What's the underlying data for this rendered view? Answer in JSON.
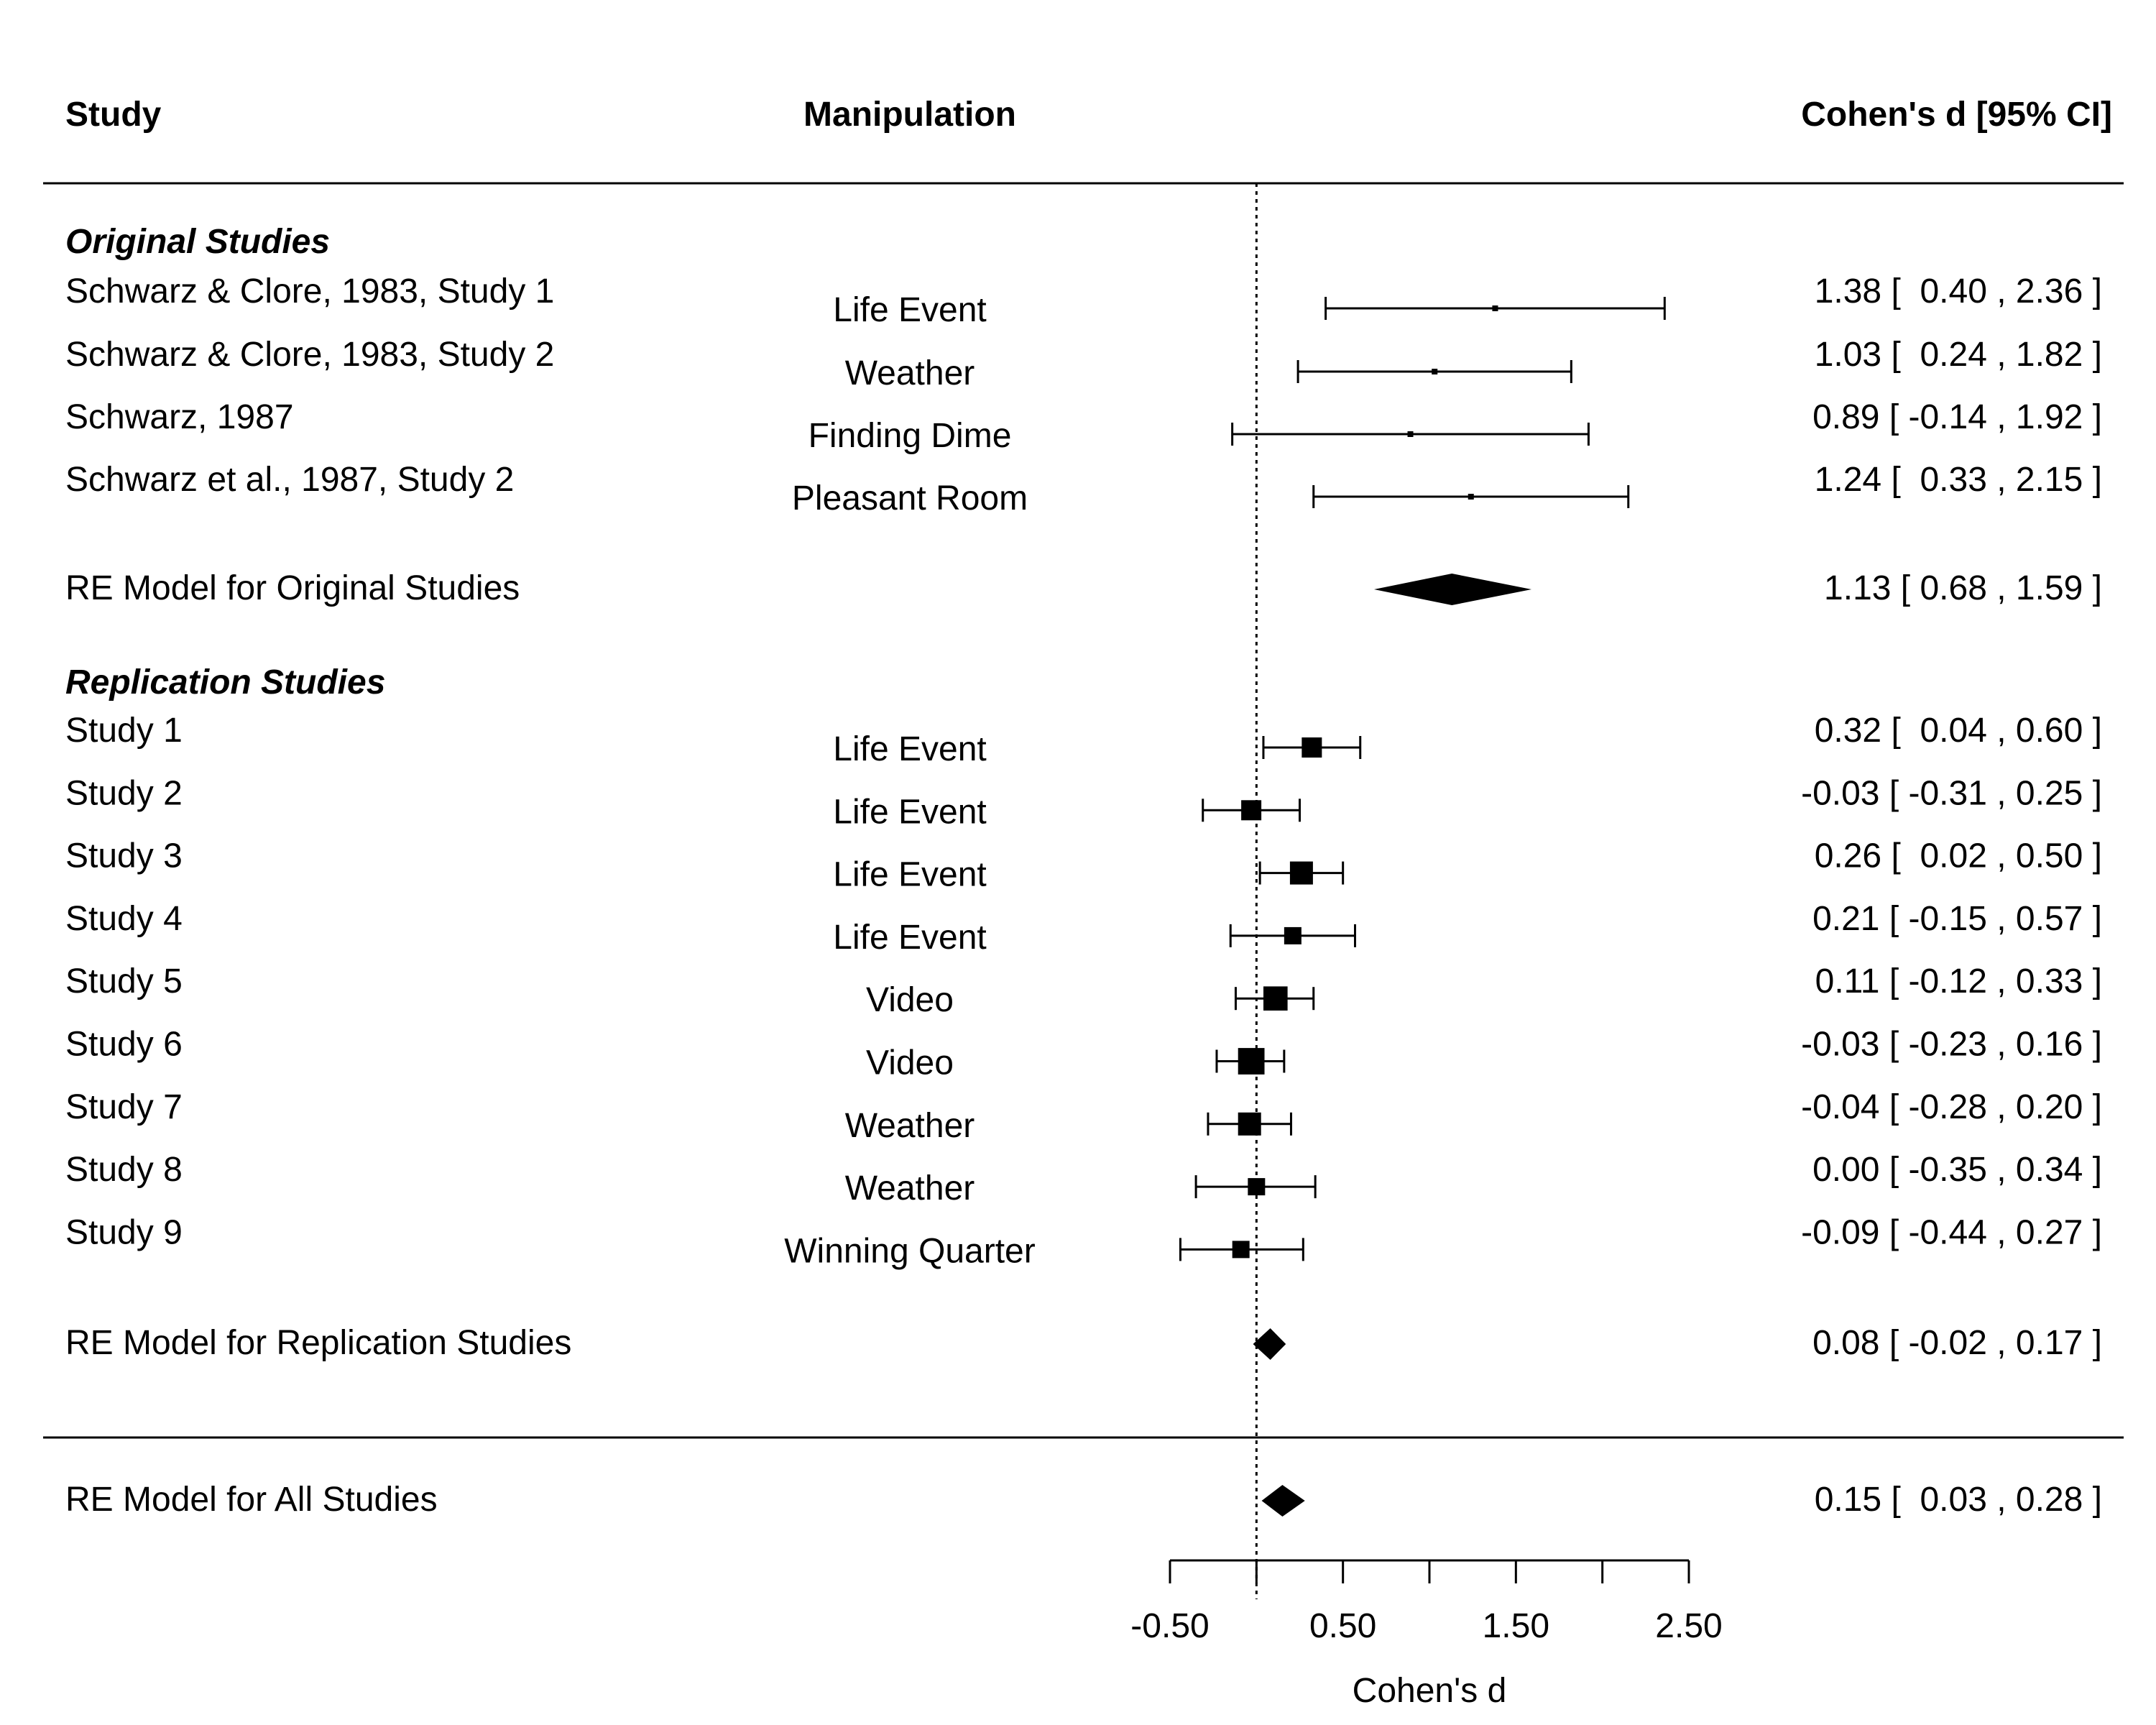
{
  "header": {
    "study": "Study",
    "manipulation": "Manipulation",
    "effect": "Cohen's d [95% CI]"
  },
  "chart_data": {
    "type": "forest",
    "xlabel": "Cohen's d",
    "xlim": [
      -0.5,
      2.5
    ],
    "xticks": [
      -0.5,
      0,
      0.5,
      1,
      1.5,
      2,
      2.5
    ],
    "xtick_labels": [
      "-0.50",
      "",
      "0.50",
      "",
      "1.50",
      "",
      "2.50"
    ],
    "reference_line": 0,
    "sections": [
      {
        "title": "Original Studies",
        "studies": [
          {
            "study": "Schwarz & Clore, 1983, Study 1",
            "manipulation": "Life Event",
            "d": 1.38,
            "lo": 0.4,
            "hi": 2.36,
            "weight": 1,
            "label": "1.38 [  0.40 , 2.36 ]"
          },
          {
            "study": "Schwarz & Clore, 1983, Study 2",
            "manipulation": "Weather",
            "d": 1.03,
            "lo": 0.24,
            "hi": 1.82,
            "weight": 1,
            "label": "1.03 [  0.24 , 1.82 ]"
          },
          {
            "study": "Schwarz, 1987",
            "manipulation": "Finding Dime",
            "d": 0.89,
            "lo": -0.14,
            "hi": 1.92,
            "weight": 1,
            "label": "0.89 [ -0.14 , 1.92 ]"
          },
          {
            "study": "Schwarz et al., 1987, Study 2",
            "manipulation": "Pleasant Room",
            "d": 1.24,
            "lo": 0.33,
            "hi": 2.15,
            "weight": 1,
            "label": "1.24 [  0.33 , 2.15 ]"
          }
        ],
        "summary": {
          "label_text": "RE Model for Original Studies",
          "d": 1.13,
          "lo": 0.68,
          "hi": 1.59,
          "label": "1.13 [ 0.68 , 1.59 ]"
        }
      },
      {
        "title": "Replication Studies",
        "studies": [
          {
            "study": "Study 1",
            "manipulation": "Life Event",
            "d": 0.32,
            "lo": 0.04,
            "hi": 0.6,
            "weight": 3.5,
            "label": "0.32 [  0.04 , 0.60 ]"
          },
          {
            "study": "Study 2",
            "manipulation": "Life Event",
            "d": -0.03,
            "lo": -0.31,
            "hi": 0.25,
            "weight": 3.5,
            "label": "-0.03 [ -0.31 , 0.25 ]"
          },
          {
            "study": "Study 3",
            "manipulation": "Life Event",
            "d": 0.26,
            "lo": 0.02,
            "hi": 0.5,
            "weight": 4,
            "label": "0.26 [  0.02 , 0.50 ]"
          },
          {
            "study": "Study 4",
            "manipulation": "Life Event",
            "d": 0.21,
            "lo": -0.15,
            "hi": 0.57,
            "weight": 3,
            "label": "0.21 [ -0.15 , 0.57 ]"
          },
          {
            "study": "Study 5",
            "manipulation": "Video",
            "d": 0.11,
            "lo": -0.12,
            "hi": 0.33,
            "weight": 4.2,
            "label": "0.11 [ -0.12 , 0.33 ]"
          },
          {
            "study": "Study 6",
            "manipulation": "Video",
            "d": -0.03,
            "lo": -0.23,
            "hi": 0.16,
            "weight": 4.6,
            "label": "-0.03 [ -0.23 , 0.16 ]"
          },
          {
            "study": "Study 7",
            "manipulation": "Weather",
            "d": -0.04,
            "lo": -0.28,
            "hi": 0.2,
            "weight": 4,
            "label": "-0.04 [ -0.28 , 0.20 ]"
          },
          {
            "study": "Study 8",
            "manipulation": "Weather",
            "d": 0.0,
            "lo": -0.35,
            "hi": 0.34,
            "weight": 3,
            "label": "0.00 [ -0.35 , 0.34 ]"
          },
          {
            "study": "Study 9",
            "manipulation": "Winning Quarter",
            "d": -0.09,
            "lo": -0.44,
            "hi": 0.27,
            "weight": 3,
            "label": "-0.09 [ -0.44 , 0.27 ]"
          }
        ],
        "summary": {
          "label_text": "RE Model for Replication Studies",
          "d": 0.08,
          "lo": -0.02,
          "hi": 0.17,
          "label": "0.08 [ -0.02 , 0.17 ]"
        }
      }
    ],
    "overall": {
      "label_text": "RE Model for All Studies",
      "d": 0.15,
      "lo": 0.03,
      "hi": 0.28,
      "label": "0.15 [  0.03 , 0.28 ]"
    }
  }
}
